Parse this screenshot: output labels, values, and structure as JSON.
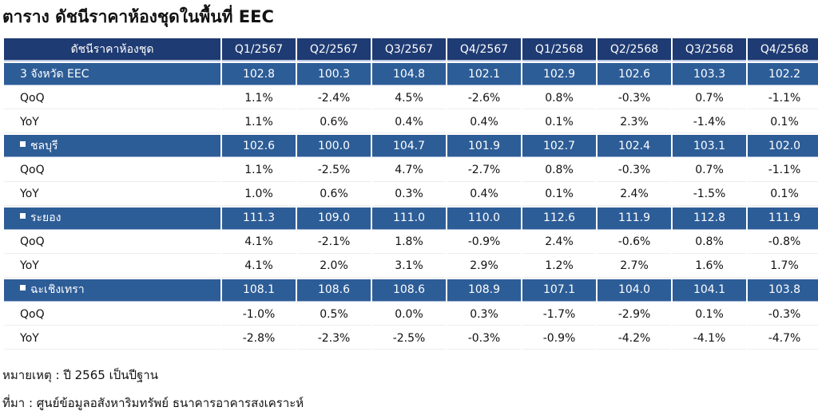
{
  "title": "ตาราง ดัชนีราคาห้องชุดในพื้นที่ EEC",
  "table": {
    "corner": "ดัชนีราคาห้องชุด",
    "columns": [
      "Q1/2567",
      "Q2/2567",
      "Q3/2567",
      "Q4/2567",
      "Q1/2568",
      "Q2/2568",
      "Q3/2568",
      "Q4/2568"
    ],
    "groups": [
      {
        "name": "3 จังหวัด EEC",
        "bullet": false,
        "index": [
          "102.8",
          "100.3",
          "104.8",
          "102.1",
          "102.9",
          "102.6",
          "103.3",
          "102.2"
        ],
        "qoq_label": "QoQ",
        "qoq": [
          "1.1%",
          "-2.4%",
          "4.5%",
          "-2.6%",
          "0.8%",
          "-0.3%",
          "0.7%",
          "-1.1%"
        ],
        "yoy_label": "YoY",
        "yoy": [
          "1.1%",
          "0.6%",
          "0.4%",
          "0.4%",
          "0.1%",
          "2.3%",
          "-1.4%",
          "0.1%"
        ]
      },
      {
        "name": "ชลบุรี",
        "bullet": true,
        "index": [
          "102.6",
          "100.0",
          "104.7",
          "101.9",
          "102.7",
          "102.4",
          "103.1",
          "102.0"
        ],
        "qoq_label": "QoQ",
        "qoq": [
          "1.1%",
          "-2.5%",
          "4.7%",
          "-2.7%",
          "0.8%",
          "-0.3%",
          "0.7%",
          "-1.1%"
        ],
        "yoy_label": "YoY",
        "yoy": [
          "1.0%",
          "0.6%",
          "0.3%",
          "0.4%",
          "0.1%",
          "2.4%",
          "-1.5%",
          "0.1%"
        ]
      },
      {
        "name": "ระยอง",
        "bullet": true,
        "index": [
          "111.3",
          "109.0",
          "111.0",
          "110.0",
          "112.6",
          "111.9",
          "112.8",
          "111.9"
        ],
        "qoq_label": "QoQ",
        "qoq": [
          "4.1%",
          "-2.1%",
          "1.8%",
          "-0.9%",
          "2.4%",
          "-0.6%",
          "0.8%",
          "-0.8%"
        ],
        "yoy_label": "YoY",
        "yoy": [
          "4.1%",
          "2.0%",
          "3.1%",
          "2.9%",
          "1.2%",
          "2.7%",
          "1.6%",
          "1.7%"
        ]
      },
      {
        "name": "ฉะเชิงเทรา",
        "bullet": true,
        "index": [
          "108.1",
          "108.6",
          "108.6",
          "108.9",
          "107.1",
          "104.0",
          "104.1",
          "103.8"
        ],
        "qoq_label": "QoQ",
        "qoq": [
          "-1.0%",
          "0.5%",
          "0.0%",
          "0.3%",
          "-1.7%",
          "-2.9%",
          "0.1%",
          "-0.3%"
        ],
        "yoy_label": "YoY",
        "yoy": [
          "-2.8%",
          "-2.3%",
          "-2.5%",
          "-0.3%",
          "-0.9%",
          "-4.2%",
          "-4.1%",
          "-4.7%"
        ]
      }
    ]
  },
  "note": "หมายเหตุ : ปี 2565 เป็นปีฐาน",
  "source": "ที่มา : ศูนย์ข้อมูลอสังหาริมทรัพย์ ธนาคารอาคารสงเคราะห์",
  "colors": {
    "header": "#1f3b73",
    "group_row": "#2d5d97",
    "negative": "#d42020"
  }
}
